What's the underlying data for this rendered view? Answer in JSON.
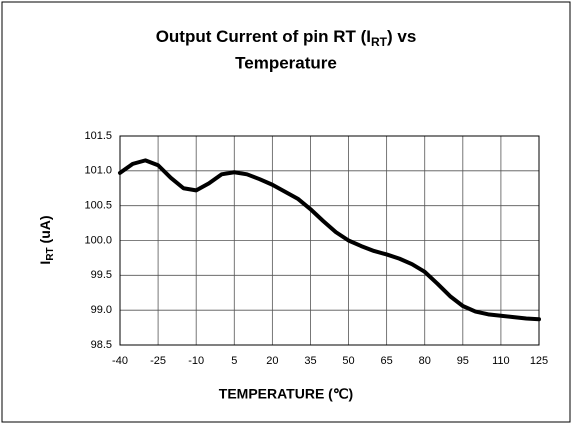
{
  "chart_data": {
    "type": "line",
    "title": [
      "Output Current of pin RT (I",
      "RT",
      ")  vs",
      "Temperature"
    ],
    "y_label": [
      "I",
      "RT",
      " (uA)"
    ],
    "x_label": "TEMPERATURE (℃)",
    "x": [
      -40,
      -35,
      -30,
      -25,
      -20,
      -15,
      -10,
      -5,
      0,
      5,
      10,
      15,
      20,
      25,
      30,
      35,
      40,
      45,
      50,
      55,
      60,
      65,
      70,
      75,
      80,
      85,
      90,
      95,
      100,
      105,
      110,
      115,
      120,
      125
    ],
    "series": [
      {
        "color": "#000000",
        "values": [
          100.97,
          101.1,
          101.15,
          101.08,
          100.9,
          100.75,
          100.72,
          100.82,
          100.95,
          100.98,
          100.95,
          100.88,
          100.8,
          100.7,
          100.6,
          100.45,
          100.28,
          100.12,
          100.0,
          99.92,
          99.85,
          99.8,
          99.74,
          99.66,
          99.55,
          99.38,
          99.2,
          99.06,
          98.98,
          98.94,
          98.92,
          98.9,
          98.88,
          98.87
        ]
      }
    ],
    "xlim": [
      -40,
      125
    ],
    "xticks": [
      -40,
      -25,
      -10,
      5,
      20,
      35,
      50,
      65,
      80,
      95,
      110,
      125
    ],
    "ylim": [
      98.5,
      101.5
    ],
    "yticks": [
      98.5,
      {
        "value": 99.0,
        "label": "99.0"
      },
      99.5,
      {
        "value": 100.0,
        "label": "100.0"
      },
      100.5,
      {
        "value": 101.0,
        "label": "101.0"
      },
      101.5
    ],
    "grid": true
  }
}
